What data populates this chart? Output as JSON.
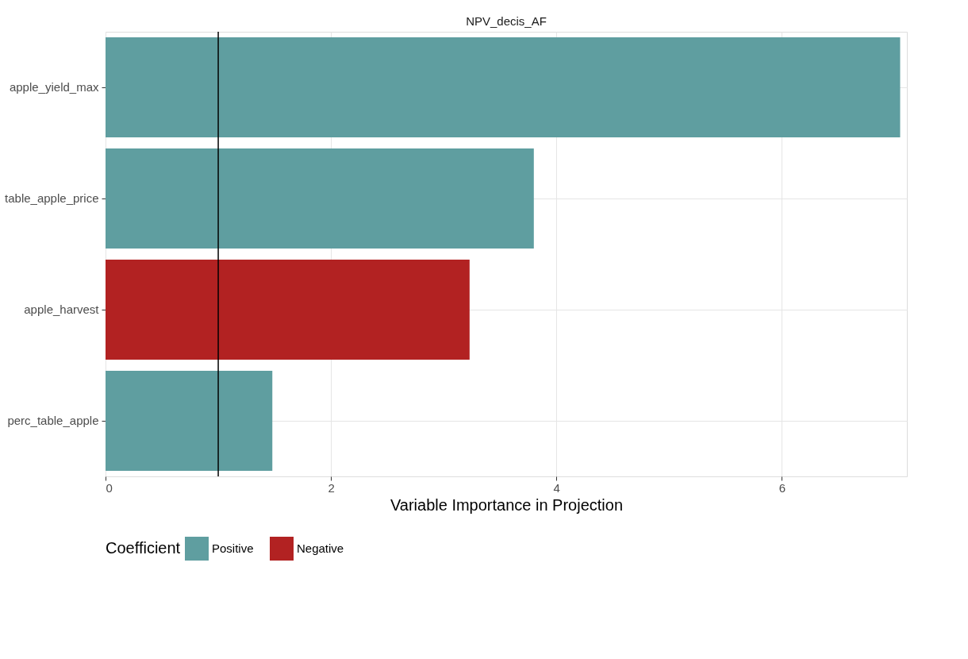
{
  "chart_data": {
    "type": "bar",
    "orientation": "horizontal",
    "title": "NPV_decis_AF",
    "xlabel": "Variable Importance in Projection",
    "legend_title": "Coefficient",
    "categories": [
      "apple_yield_max",
      "table_apple_price",
      "apple_harvest",
      "perc_table_apple"
    ],
    "series": [
      {
        "name": "Positive",
        "color": "#5f9ea0",
        "values": [
          7.05,
          3.8,
          null,
          1.48
        ]
      },
      {
        "name": "Negative",
        "color": "#b22222",
        "values": [
          null,
          null,
          3.23,
          null
        ]
      }
    ],
    "xlim": [
      0,
      7.11
    ],
    "xticks": [
      0,
      2,
      4,
      6
    ],
    "ref_lines": [
      {
        "axis": "x",
        "value": 1,
        "color": "#000000"
      }
    ],
    "grid": true,
    "legend": "bottom"
  }
}
